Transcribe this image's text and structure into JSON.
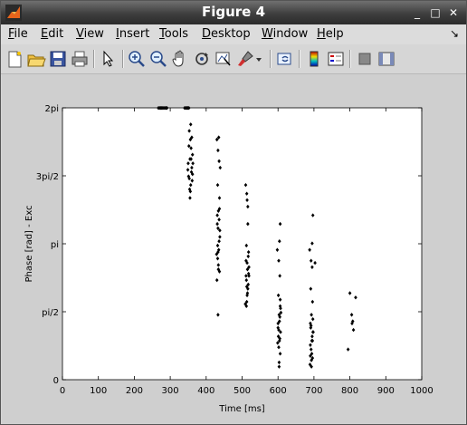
{
  "window": {
    "title": "Figure 4",
    "controls": {
      "minimize": "_",
      "maximize": "□",
      "close": "✕"
    }
  },
  "menu": [
    "File",
    "Edit",
    "View",
    "Insert",
    "Tools",
    "Desktop",
    "Window",
    "Help"
  ],
  "menu_mnemonic": [
    "F",
    "E",
    "V",
    "I",
    "T",
    "D",
    "W",
    "H"
  ],
  "dock_arrow": "↘",
  "toolbar": [
    "new-figure",
    "open-file",
    "save",
    "print",
    "edit-plot",
    "zoom-in",
    "zoom-out",
    "pan",
    "rotate-3d",
    "data-cursor",
    "brush",
    "link-plot",
    "colorbar",
    "legend",
    "hide-plot-tools",
    "show-plot-tools"
  ],
  "colors": {
    "background": "#cfcfcf",
    "axes": "#ffffff",
    "markers": "#000000"
  },
  "chart_data": {
    "type": "scatter",
    "xlabel": "Time [ms]",
    "ylabel": "Phase [rad] - Exc",
    "xlim": [
      0,
      1000
    ],
    "ylim": [
      0,
      6.2832
    ],
    "xticks": [
      0,
      100,
      200,
      300,
      400,
      500,
      600,
      700,
      800,
      900,
      1000
    ],
    "xtick_labels": [
      "0",
      "100",
      "200",
      "300",
      "400",
      "500",
      "600",
      "700",
      "800",
      "900",
      "1000"
    ],
    "yticks": [
      0,
      1.5708,
      3.1416,
      4.7124,
      6.2832
    ],
    "ytick_labels": [
      "0",
      "pi/2",
      "pi",
      "3pi/2",
      "2pi"
    ],
    "grid": false,
    "marker": "diamond",
    "points": [
      [
        267,
        6.28
      ],
      [
        270,
        6.28
      ],
      [
        273,
        6.28
      ],
      [
        276,
        6.28
      ],
      [
        279,
        6.28
      ],
      [
        282,
        6.28
      ],
      [
        285,
        6.28
      ],
      [
        288,
        6.28
      ],
      [
        291,
        6.28
      ],
      [
        340,
        6.28
      ],
      [
        343,
        6.28
      ],
      [
        346,
        6.28
      ],
      [
        349,
        6.28
      ],
      [
        352,
        6.28
      ],
      [
        353,
        5.75
      ],
      [
        356,
        5.55
      ],
      [
        358,
        5.35
      ],
      [
        355,
        5.1
      ],
      [
        360,
        4.9
      ],
      [
        351,
        4.7
      ],
      [
        357,
        4.5
      ],
      [
        362,
        5.2
      ],
      [
        350,
        5.0
      ],
      [
        354,
        4.4
      ],
      [
        359,
        4.8
      ],
      [
        352,
        5.4
      ],
      [
        361,
        4.6
      ],
      [
        355,
        4.2
      ],
      [
        357,
        5.9
      ],
      [
        363,
        5.0
      ],
      [
        349,
        4.85
      ],
      [
        356,
        4.35
      ],
      [
        360,
        5.6
      ],
      [
        353,
        4.65
      ],
      [
        358,
        5.1
      ],
      [
        362,
        4.75
      ],
      [
        430,
        5.55
      ],
      [
        433,
        5.3
      ],
      [
        436,
        5.05
      ],
      [
        432,
        4.5
      ],
      [
        437,
        4.2
      ],
      [
        434,
        3.9
      ],
      [
        431,
        3.6
      ],
      [
        438,
        3.3
      ],
      [
        435,
        3.0
      ],
      [
        432,
        2.8
      ],
      [
        437,
        2.5
      ],
      [
        433,
        3.5
      ],
      [
        436,
        3.2
      ],
      [
        434,
        2.65
      ],
      [
        430,
        2.3
      ],
      [
        439,
        4.9
      ],
      [
        435,
        5.6
      ],
      [
        431,
        3.8
      ],
      [
        438,
        3.45
      ],
      [
        433,
        2.95
      ],
      [
        436,
        3.7
      ],
      [
        432,
        3.1
      ],
      [
        434,
        2.55
      ],
      [
        437,
        3.95
      ],
      [
        429,
        2.9
      ],
      [
        433,
        1.5
      ],
      [
        510,
        4.5
      ],
      [
        513,
        4.3
      ],
      [
        516,
        4.0
      ],
      [
        512,
        3.1
      ],
      [
        518,
        2.95
      ],
      [
        514,
        2.7
      ],
      [
        511,
        2.4
      ],
      [
        517,
        2.2
      ],
      [
        515,
        2.0
      ],
      [
        513,
        1.8
      ],
      [
        519,
        2.6
      ],
      [
        512,
        2.3
      ],
      [
        516,
        2.1
      ],
      [
        514,
        1.95
      ],
      [
        518,
        2.45
      ],
      [
        511,
        2.75
      ],
      [
        515,
        2.55
      ],
      [
        513,
        2.15
      ],
      [
        517,
        2.85
      ],
      [
        509,
        1.75
      ],
      [
        519,
        2.4
      ],
      [
        514,
        4.15
      ],
      [
        516,
        3.6
      ],
      [
        512,
        1.7
      ],
      [
        598,
        3.0
      ],
      [
        602,
        2.75
      ],
      [
        605,
        2.4
      ],
      [
        601,
        1.95
      ],
      [
        606,
        1.7
      ],
      [
        603,
        1.5
      ],
      [
        600,
        1.3
      ],
      [
        607,
        1.1
      ],
      [
        604,
        0.9
      ],
      [
        602,
        0.75
      ],
      [
        606,
        0.6
      ],
      [
        603,
        0.4
      ],
      [
        600,
        1.2
      ],
      [
        605,
        1.45
      ],
      [
        601,
        1.0
      ],
      [
        607,
        1.65
      ],
      [
        604,
        1.35
      ],
      [
        599,
        0.85
      ],
      [
        606,
        1.85
      ],
      [
        602,
        1.15
      ],
      [
        605,
        0.95
      ],
      [
        603,
        0.3
      ],
      [
        608,
        1.55
      ],
      [
        606,
        3.6
      ],
      [
        604,
        3.2
      ],
      [
        688,
        3.0
      ],
      [
        692,
        2.75
      ],
      [
        695,
        2.6
      ],
      [
        691,
        2.1
      ],
      [
        696,
        1.8
      ],
      [
        693,
        1.5
      ],
      [
        690,
        1.3
      ],
      [
        697,
        1.1
      ],
      [
        694,
        0.9
      ],
      [
        692,
        0.7
      ],
      [
        696,
        0.5
      ],
      [
        693,
        0.3
      ],
      [
        689,
        0.35
      ],
      [
        691,
        1.2
      ],
      [
        695,
        1.0
      ],
      [
        697,
        1.4
      ],
      [
        690,
        0.8
      ],
      [
        694,
        0.6
      ],
      [
        692,
        1.25
      ],
      [
        696,
        0.9
      ],
      [
        693,
        0.45
      ],
      [
        698,
        1.1
      ],
      [
        690,
        0.55
      ],
      [
        697,
        3.8
      ],
      [
        695,
        3.15
      ],
      [
        703,
        2.7
      ],
      [
        795,
        0.7
      ],
      [
        800,
        2.0
      ],
      [
        805,
        1.5
      ],
      [
        808,
        1.35
      ],
      [
        806,
        1.3
      ],
      [
        810,
        1.15
      ],
      [
        816,
        1.9
      ]
    ]
  }
}
